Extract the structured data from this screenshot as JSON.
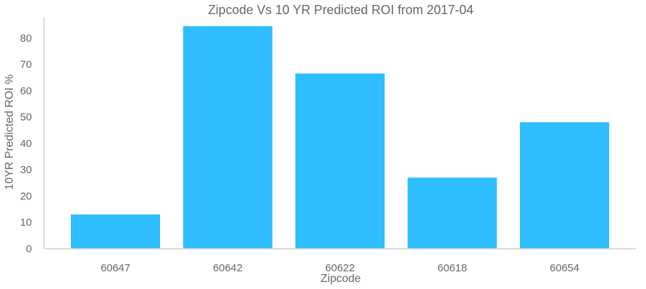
{
  "chart_data": {
    "type": "bar",
    "title": "Zipcode Vs 10 YR Predicted ROI from 2017-04",
    "xlabel": "Zipcode",
    "ylabel": "10YR Predicted ROI %",
    "categories": [
      "60647",
      "60642",
      "60622",
      "60618",
      "60654"
    ],
    "values": [
      13,
      84.5,
      66.5,
      27,
      48
    ],
    "ylim": [
      0,
      88
    ],
    "yticks": [
      "0",
      "10",
      "20",
      "30",
      "40",
      "50",
      "60",
      "70",
      "80"
    ],
    "grid": false,
    "bar_color": "#2ebdff",
    "text_color": "#666666",
    "axis_color": "#d0d0d0"
  }
}
